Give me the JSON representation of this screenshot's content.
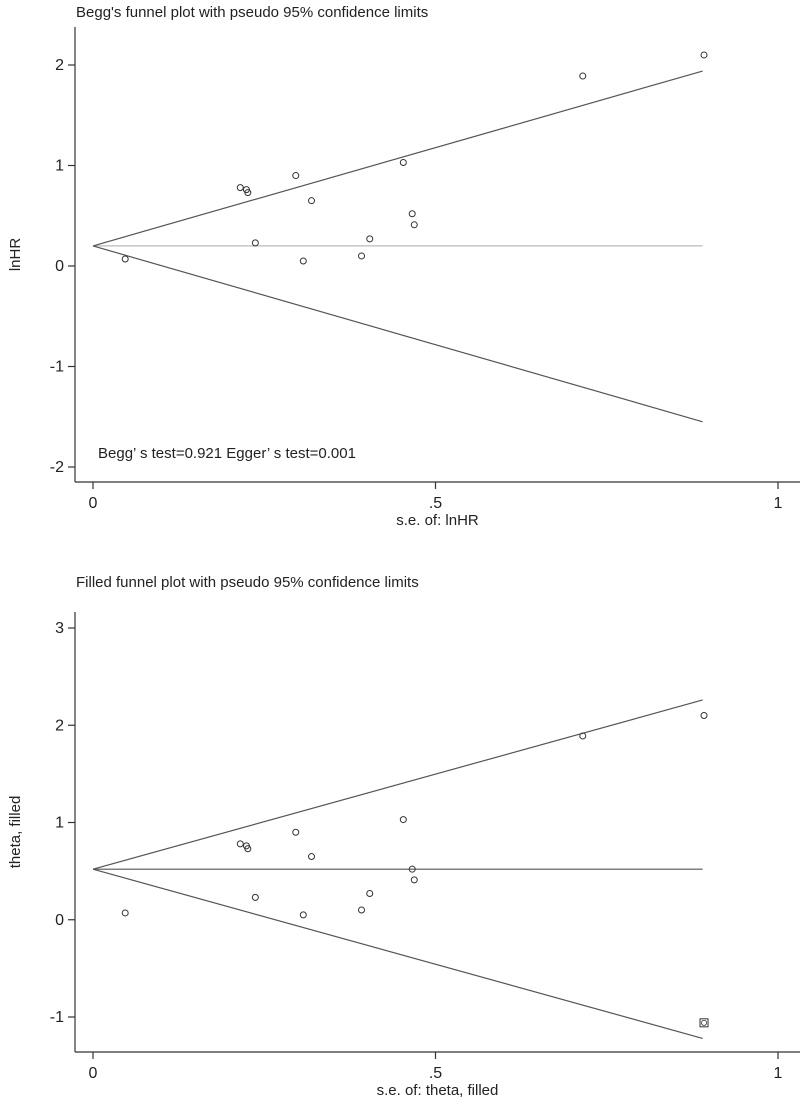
{
  "chart_data": [
    {
      "type": "scatter",
      "title": "Begg's funnel plot with pseudo 95% confidence limits",
      "xlabel": "s.e. of: lnHR",
      "ylabel": "lnHR",
      "xlim": [
        0,
        1
      ],
      "ylim": [
        -2,
        2
      ],
      "xticks": [
        "0",
        ".5",
        "1"
      ],
      "yticks": [
        "2",
        "1",
        "0",
        "-1",
        "-2"
      ],
      "annotation": "Begg’ s test=0.921 Egger’ s test=0.001",
      "pooled_estimate": 0.2,
      "confidence_limits": {
        "se_max": 0.89,
        "upper_at_max": 1.94,
        "lower_at_max": -1.55
      },
      "points": [
        {
          "x": 0.047,
          "y": 0.07
        },
        {
          "x": 0.215,
          "y": 0.78
        },
        {
          "x": 0.224,
          "y": 0.76
        },
        {
          "x": 0.226,
          "y": 0.73
        },
        {
          "x": 0.237,
          "y": 0.23
        },
        {
          "x": 0.296,
          "y": 0.9
        },
        {
          "x": 0.307,
          "y": 0.05
        },
        {
          "x": 0.319,
          "y": 0.65
        },
        {
          "x": 0.392,
          "y": 0.1
        },
        {
          "x": 0.404,
          "y": 0.27
        },
        {
          "x": 0.453,
          "y": 1.03
        },
        {
          "x": 0.466,
          "y": 0.52
        },
        {
          "x": 0.469,
          "y": 0.41
        },
        {
          "x": 0.715,
          "y": 1.89
        },
        {
          "x": 0.892,
          "y": 2.1
        }
      ],
      "grid": false,
      "legend": "none"
    },
    {
      "type": "scatter",
      "title": "Filled funnel plot with pseudo 95% confidence limits",
      "xlabel": "s.e. of: theta, filled",
      "ylabel": "theta, filled",
      "xlim": [
        0,
        1
      ],
      "ylim": [
        -1.3,
        3
      ],
      "xticks": [
        "0",
        ".5",
        "1"
      ],
      "yticks": [
        "3",
        "2",
        "1",
        "0",
        "-1"
      ],
      "pooled_estimate": 0.52,
      "confidence_limits": {
        "se_max": 0.89,
        "upper_at_max": 2.26,
        "lower_at_max": -1.22
      },
      "points": [
        {
          "x": 0.047,
          "y": 0.07
        },
        {
          "x": 0.215,
          "y": 0.78
        },
        {
          "x": 0.224,
          "y": 0.76
        },
        {
          "x": 0.226,
          "y": 0.73
        },
        {
          "x": 0.237,
          "y": 0.23
        },
        {
          "x": 0.296,
          "y": 0.9
        },
        {
          "x": 0.307,
          "y": 0.05
        },
        {
          "x": 0.319,
          "y": 0.65
        },
        {
          "x": 0.392,
          "y": 0.1
        },
        {
          "x": 0.404,
          "y": 0.27
        },
        {
          "x": 0.453,
          "y": 1.03
        },
        {
          "x": 0.466,
          "y": 0.52
        },
        {
          "x": 0.469,
          "y": 0.41
        },
        {
          "x": 0.715,
          "y": 1.89
        },
        {
          "x": 0.892,
          "y": 2.1
        }
      ],
      "filled_points": [
        {
          "x": 0.892,
          "y": -1.06
        }
      ],
      "grid": false,
      "legend": "none"
    }
  ]
}
